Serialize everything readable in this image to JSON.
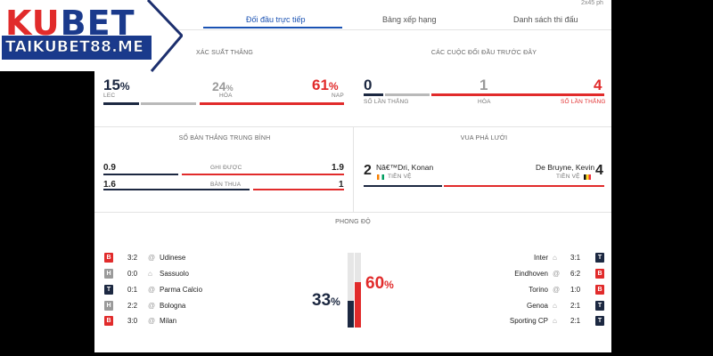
{
  "logo": {
    "brand_a": "KU",
    "brand_b": "BET",
    "url": "TAIKUBET88.ME"
  },
  "corner_note": "2x45 ph",
  "tabs": [
    {
      "label": "Đối đầu trực tiếp",
      "active": true
    },
    {
      "label": "Bảng xếp hạng",
      "active": false
    },
    {
      "label": "Danh sách thi đấu",
      "active": false
    }
  ],
  "win_prob": {
    "title": "XÁC SUẤT THẮNG",
    "home": {
      "value": "15",
      "unit": "%",
      "label": "LEC",
      "pct": 15
    },
    "draw": {
      "value": "24",
      "unit": "%",
      "label": "HÒA",
      "pct": 24
    },
    "away": {
      "value": "61",
      "unit": "%",
      "label": "NAP",
      "pct": 61
    }
  },
  "h2h": {
    "title": "CÁC CUỘC ĐỐI ĐẦU TRƯỚC ĐÂY",
    "home": {
      "value": "0",
      "label": "SỐ LẦN THẮNG"
    },
    "draw": {
      "value": "1",
      "label": "HÒA"
    },
    "away": {
      "value": "4",
      "label": "SỐ LẦN THẮNG"
    }
  },
  "avg_goals": {
    "title": "SỐ BÀN THẮNG TRUNG BÌNH",
    "rows": [
      {
        "home": "0.9",
        "label": "GHI ĐƯỢC",
        "away": "1.9",
        "home_share": 0.32
      },
      {
        "home": "1.6",
        "label": "BÀN THUA",
        "away": "1",
        "home_share": 0.62
      }
    ]
  },
  "top_scorer": {
    "title": "VUA PHÁ LƯỚI",
    "home": {
      "goals": "2",
      "name": "Nâ€™Dri, Konan",
      "team_label": "TIỀN VỆ"
    },
    "away": {
      "goals": "4",
      "name": "De Bruyne, Kevin",
      "team_label": "TIỀN VỆ"
    }
  },
  "form": {
    "title": "PHONG ĐỘ",
    "home_pct": {
      "value": "33",
      "unit": "%",
      "pct": 33
    },
    "away_pct": {
      "value": "60",
      "unit": "%",
      "pct": 60
    },
    "home": [
      {
        "result": "B",
        "score": "3:2",
        "venue": "@",
        "opponent": "Udinese"
      },
      {
        "result": "H",
        "score": "0:0",
        "venue": "⌂",
        "opponent": "Sassuolo"
      },
      {
        "result": "T",
        "score": "0:1",
        "venue": "@",
        "opponent": "Parma Calcio"
      },
      {
        "result": "H",
        "score": "2:2",
        "venue": "@",
        "opponent": "Bologna"
      },
      {
        "result": "B",
        "score": "3:0",
        "venue": "@",
        "opponent": "Milan"
      }
    ],
    "away": [
      {
        "result": "T",
        "score": "3:1",
        "venue": "⌂",
        "opponent": "Inter"
      },
      {
        "result": "B",
        "score": "6:2",
        "venue": "@",
        "opponent": "Eindhoven"
      },
      {
        "result": "B",
        "score": "1:0",
        "venue": "@",
        "opponent": "Torino"
      },
      {
        "result": "T",
        "score": "2:1",
        "venue": "⌂",
        "opponent": "Genoa"
      },
      {
        "result": "T",
        "score": "2:1",
        "venue": "⌂",
        "opponent": "Sporting CP"
      }
    ]
  },
  "colors": {
    "navy": "#1c2841",
    "red": "#e12b2b",
    "grey": "#b9b9b9",
    "blue": "#1a52b3"
  }
}
